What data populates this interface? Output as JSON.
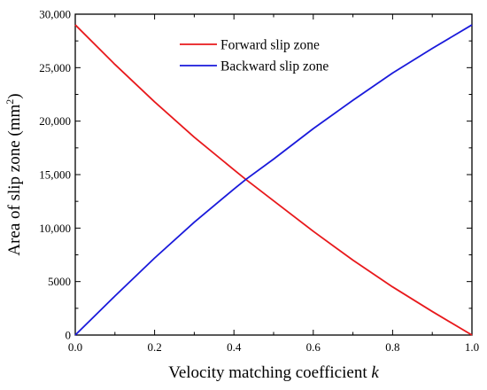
{
  "chart_data": {
    "type": "line",
    "xlabel": "Velocity matching coefficient",
    "xlabel_var": "k",
    "ylabel": "Area of slip zone (mm",
    "ylabel_sup": "2",
    "ylabel_close": ")",
    "xlim": [
      0.0,
      1.0
    ],
    "ylim": [
      0,
      30000
    ],
    "x_ticks": [
      "0.0",
      "0.2",
      "0.4",
      "0.6",
      "0.8",
      "1.0"
    ],
    "y_ticks": [
      "0",
      "5000",
      "10,000",
      "15,000",
      "20,000",
      "25,000",
      "30,000"
    ],
    "legend_position": "top-center",
    "grid": false,
    "series": [
      {
        "name": "Forward slip zone",
        "color": "#e8191c",
        "x": [
          0.0,
          0.1,
          0.2,
          0.3,
          0.4,
          0.43,
          0.5,
          0.6,
          0.7,
          0.8,
          0.9,
          1.0
        ],
        "y": [
          29000,
          25300,
          21800,
          18500,
          15450,
          14550,
          12550,
          9700,
          7000,
          4500,
          2200,
          0
        ]
      },
      {
        "name": "Backward slip zone",
        "color": "#1a1adb",
        "x": [
          0.0,
          0.1,
          0.2,
          0.3,
          0.4,
          0.43,
          0.5,
          0.6,
          0.7,
          0.8,
          0.9,
          1.0
        ],
        "y": [
          0,
          3650,
          7200,
          10550,
          13650,
          14550,
          16450,
          19300,
          21950,
          24500,
          26800,
          29000
        ]
      }
    ]
  }
}
